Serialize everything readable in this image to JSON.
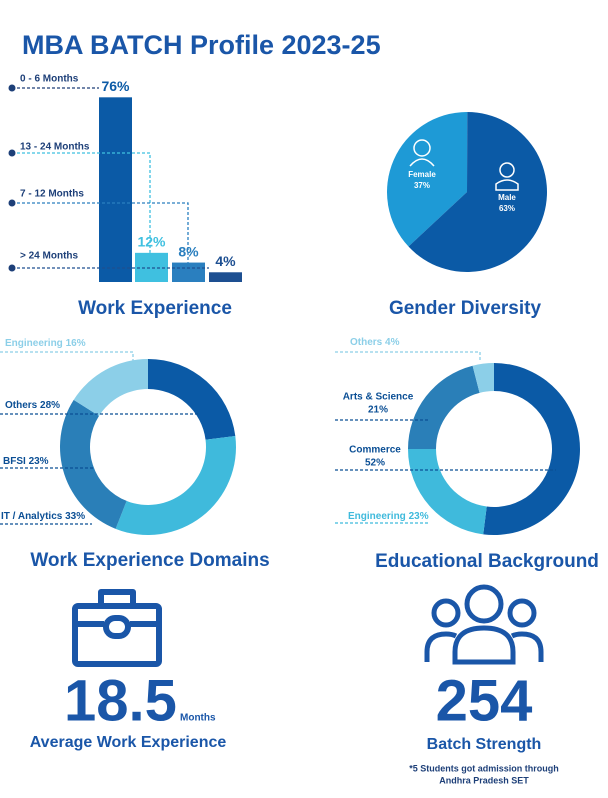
{
  "title": "MBA BATCH Profile 2023-25",
  "chart_data": [
    {
      "type": "bar",
      "title": "Work Experience",
      "categories": [
        "0 - 6 Months",
        "13 - 24 Months",
        "7 - 12 Months",
        "> 24 Months"
      ],
      "values": [
        76,
        12,
        8,
        4
      ],
      "value_labels": [
        "76%",
        "12%",
        "8%",
        "4%"
      ],
      "colors": [
        "#0b5aa6",
        "#3fc0e0",
        "#2a7fbf",
        "#1d4f91"
      ]
    },
    {
      "type": "pie",
      "title": "Gender Diversity",
      "categories": [
        "Female",
        "Male"
      ],
      "values": [
        37,
        63
      ],
      "value_labels": [
        "37%",
        "63%"
      ],
      "colors": [
        "#1e9ad6",
        "#0b5aa6"
      ]
    },
    {
      "type": "donut",
      "title": "Work Experience Domains",
      "categories": [
        "BFSI",
        "IT / Analytics",
        "Others",
        "Engineering"
      ],
      "values": [
        23,
        33,
        28,
        16
      ],
      "value_labels": [
        "23%",
        "33%",
        "28%",
        "16%"
      ],
      "colors": [
        "#0b5aa6",
        "#3fbadc",
        "#2a7fb8",
        "#8ccfe8"
      ]
    },
    {
      "type": "donut",
      "title": "Educational Background",
      "categories": [
        "Commerce",
        "Engineering",
        "Arts & Science",
        "Others"
      ],
      "values": [
        52,
        23,
        21,
        4
      ],
      "value_labels": [
        "52%",
        "23%",
        "21%",
        "4%"
      ],
      "colors": [
        "#0b5aa6",
        "#3fbadc",
        "#2a7fb8",
        "#8ccfe8"
      ]
    }
  ],
  "stats": [
    {
      "value": 18.5,
      "unit": "Months",
      "label": "Average Work Experience"
    },
    {
      "value": 254,
      "label": "Batch Strength",
      "note": [
        "*5 Students got admission through",
        "Andhra Pradesh SET"
      ]
    }
  ]
}
